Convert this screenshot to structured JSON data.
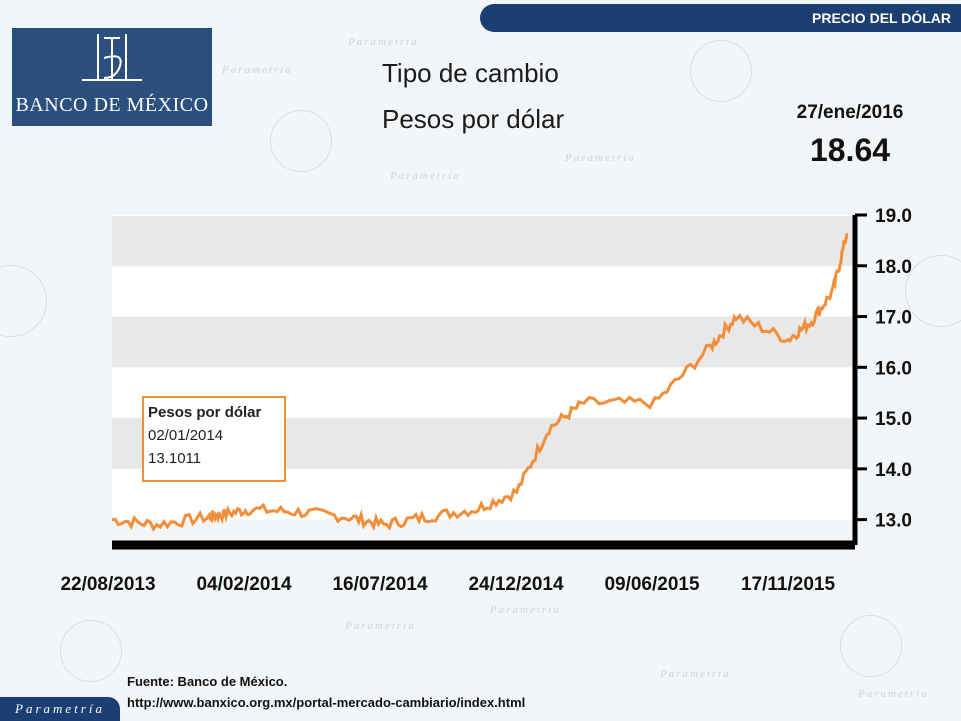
{
  "header": {
    "banner": "PRECIO DEL DÓLAR"
  },
  "logo": {
    "text": "BANCO DE MÉXICO"
  },
  "title": {
    "line1": "Tipo de cambio",
    "line2": "Pesos por dólar"
  },
  "latest": {
    "date": "27/ene/2016",
    "value": "18.64"
  },
  "tooltip": {
    "title": "Pesos por dólar",
    "date": "02/01/2014",
    "value": "13.1011"
  },
  "source": {
    "line1": "Fuente: Banco de México.",
    "line2": "http://www.banxico.org.mx/portal-mercado-cambiario/index.html"
  },
  "brand": "Parametría",
  "watermark": "Parametría",
  "colors": {
    "line": "#f28e3a",
    "banner": "#1c3f73",
    "band": "#e8e8e8"
  },
  "chart_data": {
    "type": "line",
    "series": [
      {
        "x": [
          "22/08/2013",
          "15/10/2013",
          "15/12/2013",
          "02/01/2014",
          "04/02/2014",
          "04/04/2014",
          "04/06/2014",
          "16/07/2014",
          "04/09/2014",
          "04/11/2014",
          "24/12/2014",
          "01/02/2015",
          "15/03/2015",
          "09/06/2015",
          "15/08/2015",
          "15/09/2015",
          "17/11/2015",
          "15/12/2015",
          "10/01/2016",
          "27/01/2016"
        ],
        "values": [
          13.0,
          12.9,
          13.05,
          13.1,
          13.2,
          13.15,
          13.05,
          12.9,
          13.05,
          13.2,
          13.55,
          14.8,
          15.3,
          15.3,
          16.4,
          17.0,
          16.55,
          16.9,
          17.5,
          18.64
        ]
      }
    ],
    "x_ticks": [
      "22/08/2013",
      "04/02/2014",
      "16/07/2014",
      "24/12/2014",
      "09/06/2015",
      "17/11/2015"
    ],
    "y_ticks": [
      "13.0",
      "14.0",
      "15.0",
      "16.0",
      "17.0",
      "18.0",
      "19.0"
    ],
    "ylim": [
      12.5,
      19.0
    ],
    "y_axis_side": "right",
    "grid": false
  }
}
